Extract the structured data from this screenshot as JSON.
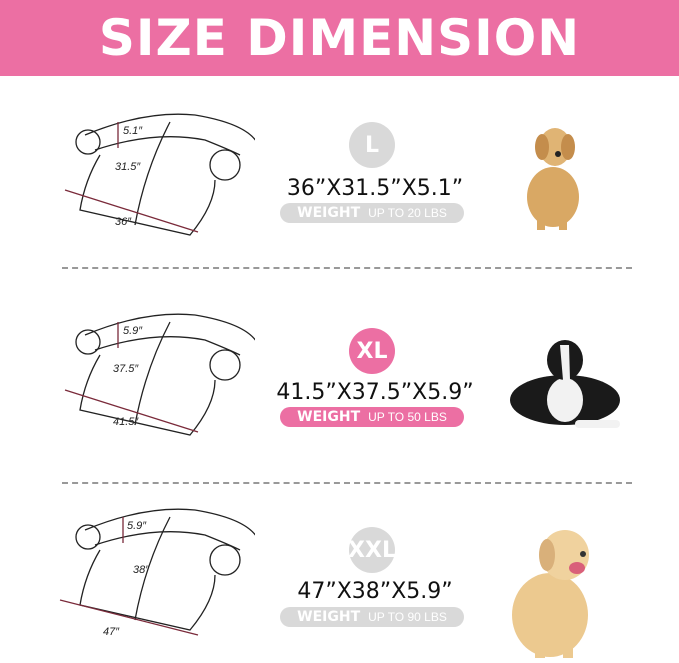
{
  "header": {
    "title": "SIZE DIMENSION",
    "color": "#ec6fa3"
  },
  "sizes": [
    {
      "label": "L",
      "dimensions": "36”X31.5”X5.1”",
      "weight_label": "WEIGHT",
      "weight_value": "UP TO 20 LBS",
      "badge_color": "#d9d9d9",
      "length": "36″",
      "width": "31.5″",
      "height": "5.1″",
      "dog": "golden-retriever-puppy"
    },
    {
      "label": "XL",
      "dimensions": "41.5”X37.5”X5.9”",
      "weight_label": "WEIGHT",
      "weight_value": "UP TO 50 LBS",
      "badge_color": "#ec6fa3",
      "length": "41.5″",
      "width": "37.5″",
      "height": "5.9″",
      "dog": "border-collie"
    },
    {
      "label": "XXL",
      "dimensions": "47”X38”X5.9”",
      "weight_label": "WEIGHT",
      "weight_value": "UP TO 90 LBS",
      "badge_color": "#d9d9d9",
      "length": "47″",
      "width": "38″",
      "height": "5.9″",
      "dog": "labrador"
    }
  ]
}
